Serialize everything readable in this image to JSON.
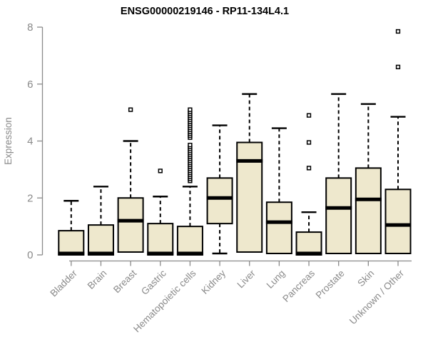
{
  "chart_data": {
    "type": "boxplot",
    "title": "ENSG00000219146 - RP11-134L4.1",
    "ylabel": "Expression",
    "xlabel": "",
    "ylim": [
      0,
      8
    ],
    "yticks": [
      0,
      2,
      4,
      6,
      8
    ],
    "grid": false,
    "legend": "none",
    "categories": [
      "Bladder",
      "Brain",
      "Breast",
      "Gastric",
      "Hematopoietic cells",
      "Kidney",
      "Liver",
      "Lung",
      "Pancreas",
      "Prostate",
      "Skin",
      "Unknown / Other"
    ],
    "boxes": [
      {
        "category": "Bladder",
        "whisker_low": 0,
        "q1": 0,
        "median": 0.05,
        "q3": 0.85,
        "whisker_high": 1.9,
        "outliers": []
      },
      {
        "category": "Brain",
        "whisker_low": 0,
        "q1": 0,
        "median": 0.05,
        "q3": 1.05,
        "whisker_high": 2.4,
        "outliers": []
      },
      {
        "category": "Breast",
        "whisker_low": 0.1,
        "q1": 0.1,
        "median": 1.2,
        "q3": 2.0,
        "whisker_high": 4.0,
        "outliers": [
          5.1
        ]
      },
      {
        "category": "Gastric",
        "whisker_low": 0,
        "q1": 0,
        "median": 0.05,
        "q3": 1.1,
        "whisker_high": 2.05,
        "outliers": [
          2.95
        ]
      },
      {
        "category": "Hematopoietic cells",
        "whisker_low": 0,
        "q1": 0,
        "median": 0.05,
        "q3": 1.0,
        "whisker_high": 2.4,
        "outliers": [
          2.6,
          2.67,
          2.74,
          2.81,
          2.88,
          2.95,
          3.02,
          3.09,
          3.16,
          3.23,
          3.3,
          3.37,
          3.44,
          3.51,
          3.58,
          3.65,
          3.72,
          3.79,
          3.86,
          4.12,
          4.19,
          4.26,
          4.33,
          4.4,
          4.47,
          4.54,
          4.61,
          4.68,
          4.75,
          4.82,
          4.89,
          4.96,
          5.03,
          5.1
        ]
      },
      {
        "category": "Kidney",
        "whisker_low": 0.05,
        "q1": 1.1,
        "median": 2.0,
        "q3": 2.7,
        "whisker_high": 4.55,
        "outliers": []
      },
      {
        "category": "Liver",
        "whisker_low": 0.1,
        "q1": 0.1,
        "median": 3.3,
        "q3": 3.95,
        "whisker_high": 5.65,
        "outliers": []
      },
      {
        "category": "Lung",
        "whisker_low": 0.05,
        "q1": 0.05,
        "median": 1.15,
        "q3": 1.85,
        "whisker_high": 4.45,
        "outliers": []
      },
      {
        "category": "Pancreas",
        "whisker_low": 0,
        "q1": 0,
        "median": 0.05,
        "q3": 0.8,
        "whisker_high": 1.5,
        "outliers": [
          3.05,
          3.95,
          4.9
        ]
      },
      {
        "category": "Prostate",
        "whisker_low": 0.05,
        "q1": 0.05,
        "median": 1.65,
        "q3": 2.7,
        "whisker_high": 5.65,
        "outliers": []
      },
      {
        "category": "Skin",
        "whisker_low": 0.05,
        "q1": 0.05,
        "median": 1.95,
        "q3": 3.05,
        "whisker_high": 5.3,
        "outliers": []
      },
      {
        "category": "Unknown / Other",
        "whisker_low": 0.05,
        "q1": 0.05,
        "median": 1.05,
        "q3": 2.3,
        "whisker_high": 4.85,
        "outliers": [
          6.6,
          7.85
        ]
      }
    ],
    "style": {
      "box_fill": "#EEE8CD",
      "box_stroke": "#000000",
      "median_color": "#000000",
      "whisker_color": "#000000",
      "outlier_fill": "#FFFFFF",
      "outlier_stroke": "#000000",
      "axis_color": "#8A8A8A",
      "tick_label_color": "#8A8A8A",
      "title_color": "#000000",
      "background": "#FFFFFF"
    }
  }
}
